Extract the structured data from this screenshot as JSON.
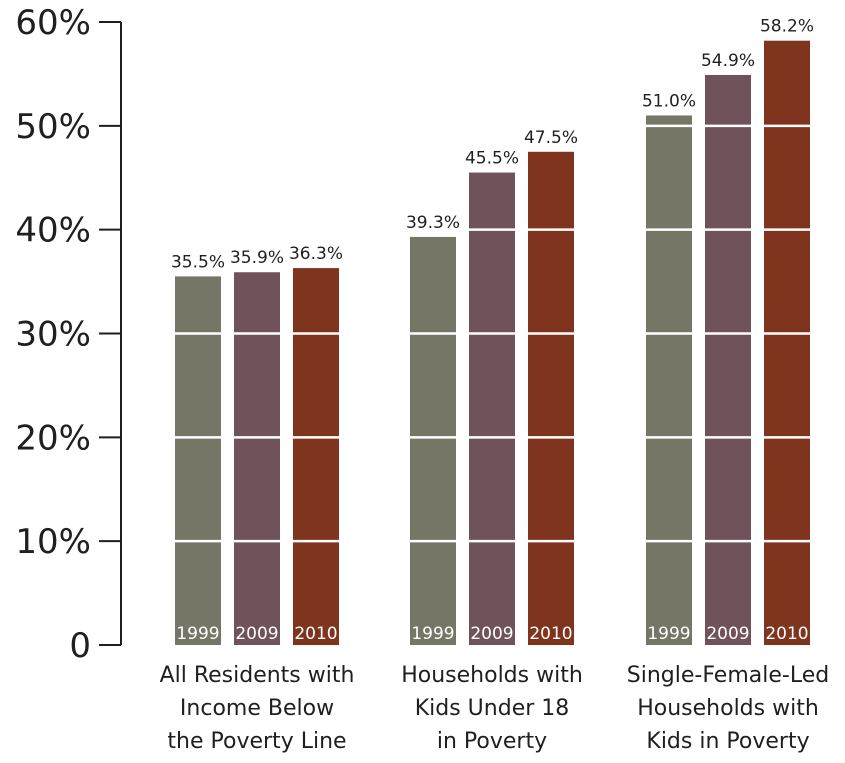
{
  "chart_data": {
    "type": "bar",
    "title": "",
    "xlabel": "",
    "ylabel": "",
    "ylim": [
      0,
      60
    ],
    "yticks": [
      0,
      10,
      20,
      30,
      40,
      50,
      60
    ],
    "ytick_labels": [
      "0",
      "10%",
      "20%",
      "30%",
      "40%",
      "50%",
      "60%"
    ],
    "grid": "white lines drawn across bars only",
    "legend": "none",
    "categories": [
      [
        "All Residents with",
        "Income Below",
        "the Poverty Line"
      ],
      [
        "Households with",
        "Kids Under 18",
        "in Poverty"
      ],
      [
        "Single-Female-Led",
        "Households with",
        "Kids in Poverty"
      ]
    ],
    "series": [
      {
        "year_label": "1999",
        "color": "#767666",
        "values": [
          35.5,
          39.3,
          51.0
        ],
        "value_labels": [
          "35.5%",
          "39.3%",
          "51.0%"
        ]
      },
      {
        "year_label": "2009",
        "color": "#70525A",
        "values": [
          35.9,
          45.5,
          54.9
        ],
        "value_labels": [
          "35.9%",
          "45.5%",
          "54.9%"
        ]
      },
      {
        "year_label": "2010",
        "color": "#7F341D",
        "values": [
          36.3,
          47.5,
          58.2
        ],
        "value_labels": [
          "36.3%",
          "47.5%",
          "58.2%"
        ]
      }
    ]
  }
}
